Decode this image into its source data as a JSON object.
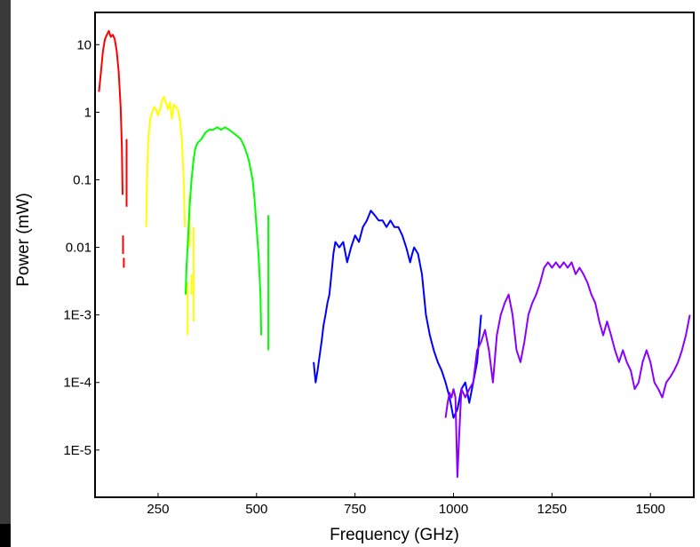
{
  "chart_data": {
    "type": "line",
    "title": "",
    "xlabel": "Frequency (GHz)",
    "ylabel": "Power (mW)",
    "xlim": [
      90,
      1610
    ],
    "ylim": [
      2e-06,
      30
    ],
    "yscale": "log",
    "grid": false,
    "legend": "none",
    "x_ticks": [
      {
        "value": 250,
        "label": "250"
      },
      {
        "value": 500,
        "label": "500"
      },
      {
        "value": 750,
        "label": "750"
      },
      {
        "value": 1000,
        "label": "1000"
      },
      {
        "value": 1250,
        "label": "1250"
      },
      {
        "value": 1500,
        "label": "1500"
      }
    ],
    "y_ticks": [
      {
        "value": 10,
        "label": "10"
      },
      {
        "value": 1,
        "label": "1"
      },
      {
        "value": 0.1,
        "label": "0.1"
      },
      {
        "value": 0.01,
        "label": "0.01"
      },
      {
        "value": 0.001,
        "label": "1E-3"
      },
      {
        "value": 0.0001,
        "label": "1E-4"
      },
      {
        "value": 1e-05,
        "label": "1E-5"
      }
    ],
    "series": [
      {
        "color": "#ff0000",
        "points": [
          [
            100,
            2
          ],
          [
            105,
            4
          ],
          [
            110,
            8
          ],
          [
            115,
            12
          ],
          [
            120,
            14
          ],
          [
            125,
            16
          ],
          [
            130,
            13
          ],
          [
            135,
            14
          ],
          [
            140,
            12
          ],
          [
            145,
            8
          ],
          [
            150,
            4
          ],
          [
            155,
            1.2
          ],
          [
            158,
            0.3
          ],
          [
            160,
            0.06
          ]
        ],
        "segments": [
          [
            [
              161,
              0.015
            ],
            [
              161,
              0.008
            ]
          ],
          [
            [
              163,
              0.007
            ],
            [
              163,
              0.005
            ]
          ],
          [
            [
              170,
              0.4
            ],
            [
              170,
              0.04
            ]
          ]
        ]
      },
      {
        "color": "#ffff00",
        "points": [
          [
            220,
            0.02
          ],
          [
            222,
            0.1
          ],
          [
            225,
            0.4
          ],
          [
            230,
            0.8
          ],
          [
            235,
            1.0
          ],
          [
            240,
            1.2
          ],
          [
            245,
            1.1
          ],
          [
            250,
            0.9
          ],
          [
            255,
            1.1
          ],
          [
            260,
            1.5
          ],
          [
            265,
            1.7
          ],
          [
            270,
            1.4
          ],
          [
            275,
            1.1
          ],
          [
            280,
            1.4
          ],
          [
            285,
            0.8
          ],
          [
            290,
            1.3
          ],
          [
            295,
            1.2
          ],
          [
            300,
            1.1
          ],
          [
            305,
            0.8
          ],
          [
            310,
            0.4
          ],
          [
            315,
            0.1
          ],
          [
            318,
            0.02
          ]
        ],
        "segments": [
          [
            [
              325,
              0.003
            ],
            [
              325,
              0.0005
            ]
          ],
          [
            [
              330,
              0.06
            ],
            [
              330,
              0.01
            ]
          ],
          [
            [
              335,
              0.004
            ],
            [
              335,
              0.002
            ]
          ],
          [
            [
              340,
              0.02
            ],
            [
              340,
              0.0008
            ]
          ]
        ]
      },
      {
        "color": "#00ff00",
        "points": [
          [
            320,
            0.002
          ],
          [
            322,
            0.005
          ],
          [
            325,
            0.01
          ],
          [
            330,
            0.04
          ],
          [
            335,
            0.1
          ],
          [
            340,
            0.2
          ],
          [
            345,
            0.3
          ],
          [
            350,
            0.35
          ],
          [
            360,
            0.4
          ],
          [
            370,
            0.5
          ],
          [
            380,
            0.55
          ],
          [
            390,
            0.55
          ],
          [
            400,
            0.6
          ],
          [
            410,
            0.55
          ],
          [
            420,
            0.6
          ],
          [
            430,
            0.55
          ],
          [
            440,
            0.5
          ],
          [
            450,
            0.45
          ],
          [
            460,
            0.4
          ],
          [
            470,
            0.3
          ],
          [
            480,
            0.2
          ],
          [
            490,
            0.1
          ],
          [
            495,
            0.05
          ],
          [
            500,
            0.02
          ],
          [
            505,
            0.008
          ],
          [
            510,
            0.002
          ],
          [
            512,
            0.0005
          ]
        ],
        "segments": [
          [
            [
              530,
              0.03
            ],
            [
              530,
              0.0003
            ]
          ]
        ]
      },
      {
        "color": "#0000ff",
        "points": [
          [
            645,
            0.0002
          ],
          [
            650,
            0.0001
          ],
          [
            655,
            0.00015
          ],
          [
            660,
            0.00025
          ],
          [
            665,
            0.0004
          ],
          [
            670,
            0.0007
          ],
          [
            675,
            0.001
          ],
          [
            680,
            0.0015
          ],
          [
            685,
            0.002
          ],
          [
            690,
            0.004
          ],
          [
            695,
            0.008
          ],
          [
            700,
            0.012
          ],
          [
            710,
            0.01
          ],
          [
            720,
            0.012
          ],
          [
            730,
            0.006
          ],
          [
            740,
            0.01
          ],
          [
            750,
            0.015
          ],
          [
            760,
            0.012
          ],
          [
            770,
            0.02
          ],
          [
            780,
            0.025
          ],
          [
            790,
            0.035
          ],
          [
            800,
            0.03
          ],
          [
            810,
            0.025
          ],
          [
            820,
            0.025
          ],
          [
            830,
            0.02
          ],
          [
            840,
            0.025
          ],
          [
            850,
            0.02
          ],
          [
            860,
            0.02
          ],
          [
            870,
            0.015
          ],
          [
            880,
            0.01
          ],
          [
            890,
            0.006
          ],
          [
            895,
            0.008
          ],
          [
            900,
            0.01
          ],
          [
            910,
            0.008
          ],
          [
            920,
            0.004
          ],
          [
            930,
            0.001
          ],
          [
            940,
            0.0005
          ],
          [
            950,
            0.0003
          ],
          [
            960,
            0.0002
          ],
          [
            970,
            0.00015
          ],
          [
            980,
            0.0001
          ],
          [
            990,
            6e-05
          ],
          [
            1000,
            3e-05
          ],
          [
            1010,
            4e-05
          ],
          [
            1020,
            8e-05
          ],
          [
            1030,
            0.0001
          ],
          [
            1040,
            5e-05
          ],
          [
            1050,
            0.0001
          ],
          [
            1060,
            0.0002
          ],
          [
            1070,
            0.001
          ]
        ]
      },
      {
        "color": "#8a00ff",
        "points": [
          [
            980,
            3e-05
          ],
          [
            985,
            5e-05
          ],
          [
            990,
            7e-05
          ],
          [
            995,
            6e-05
          ],
          [
            1000,
            8e-05
          ],
          [
            1005,
            6e-05
          ],
          [
            1010,
            4e-06
          ],
          [
            1015,
            2e-05
          ],
          [
            1020,
            8e-05
          ],
          [
            1030,
            6e-05
          ],
          [
            1040,
            8e-05
          ],
          [
            1050,
            0.0001
          ],
          [
            1060,
            0.0003
          ],
          [
            1070,
            0.0004
          ],
          [
            1080,
            0.0006
          ],
          [
            1090,
            0.0003
          ],
          [
            1100,
            0.0001
          ],
          [
            1110,
            0.0005
          ],
          [
            1120,
            0.001
          ],
          [
            1130,
            0.0015
          ],
          [
            1140,
            0.002
          ],
          [
            1150,
            0.001
          ],
          [
            1160,
            0.0003
          ],
          [
            1170,
            0.0002
          ],
          [
            1180,
            0.0004
          ],
          [
            1190,
            0.001
          ],
          [
            1200,
            0.0015
          ],
          [
            1210,
            0.002
          ],
          [
            1220,
            0.003
          ],
          [
            1230,
            0.005
          ],
          [
            1240,
            0.006
          ],
          [
            1250,
            0.005
          ],
          [
            1260,
            0.006
          ],
          [
            1270,
            0.005
          ],
          [
            1280,
            0.006
          ],
          [
            1290,
            0.005
          ],
          [
            1300,
            0.006
          ],
          [
            1310,
            0.004
          ],
          [
            1320,
            0.005
          ],
          [
            1330,
            0.004
          ],
          [
            1340,
            0.003
          ],
          [
            1350,
            0.002
          ],
          [
            1360,
            0.0015
          ],
          [
            1370,
            0.0008
          ],
          [
            1380,
            0.0005
          ],
          [
            1390,
            0.0008
          ],
          [
            1400,
            0.0005
          ],
          [
            1410,
            0.0003
          ],
          [
            1420,
            0.0002
          ],
          [
            1430,
            0.0003
          ],
          [
            1440,
            0.0002
          ],
          [
            1450,
            0.00015
          ],
          [
            1460,
            8e-05
          ],
          [
            1470,
            0.0001
          ],
          [
            1480,
            0.0002
          ],
          [
            1490,
            0.0003
          ],
          [
            1500,
            0.0002
          ],
          [
            1510,
            0.0001
          ],
          [
            1520,
            8e-05
          ],
          [
            1530,
            6e-05
          ],
          [
            1540,
            0.0001
          ],
          [
            1550,
            0.00012
          ],
          [
            1560,
            0.00015
          ],
          [
            1570,
            0.0002
          ],
          [
            1580,
            0.0003
          ],
          [
            1590,
            0.0005
          ],
          [
            1600,
            0.001
          ]
        ]
      }
    ]
  }
}
